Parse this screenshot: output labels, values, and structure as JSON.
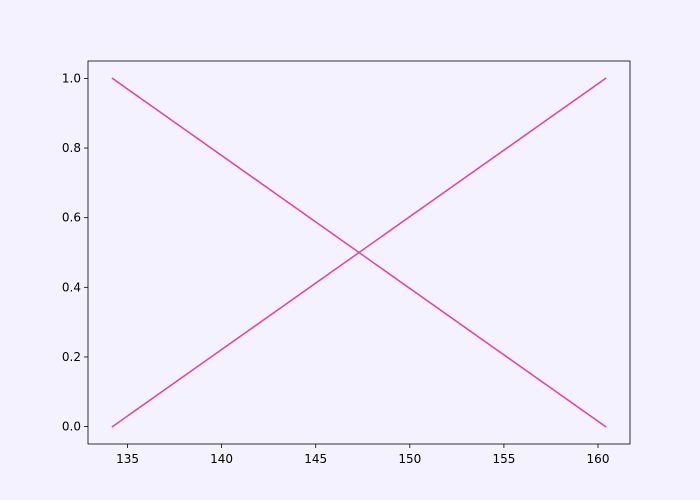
{
  "chart_data": {
    "type": "line",
    "title": "",
    "xlabel": "",
    "ylabel": "",
    "xlim": [
      132.9,
      161.7
    ],
    "ylim": [
      -0.05,
      1.05
    ],
    "xticks": [
      135,
      140,
      145,
      150,
      155,
      160
    ],
    "yticks": [
      0.0,
      0.2,
      0.4,
      0.6,
      0.8,
      1.0
    ],
    "xtick_labels": [
      "135",
      "140",
      "145",
      "150",
      "155",
      "160"
    ],
    "ytick_labels": [
      "0.0",
      "0.2",
      "0.4",
      "0.6",
      "0.8",
      "1.0"
    ],
    "grid": false,
    "legend": "none",
    "colors": {
      "background": "#f5f2ff",
      "plot_area": "#f5f2ff",
      "axis": "#000000",
      "series": "#e8409e"
    },
    "series": [
      {
        "x": [
          134.2,
          160.4
        ],
        "y": [
          1.0,
          0.0
        ]
      },
      {
        "x": [
          134.2,
          160.4
        ],
        "y": [
          0.0,
          1.0
        ]
      }
    ]
  }
}
